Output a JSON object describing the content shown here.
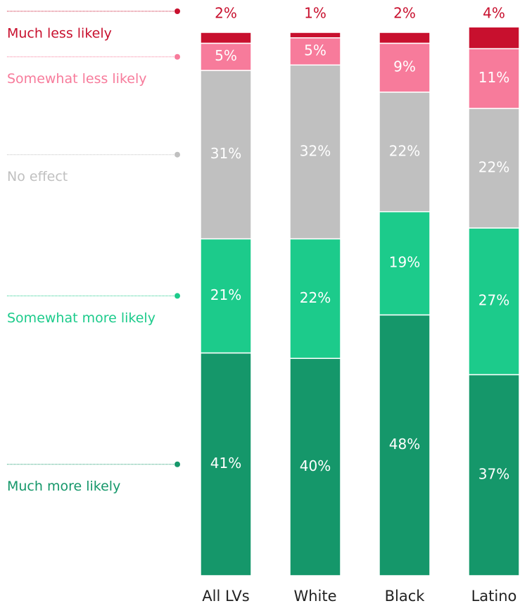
{
  "chart_data": {
    "type": "stacked_bar",
    "categories": [
      "All LVs",
      "White",
      "Black",
      "Latino"
    ],
    "series": [
      {
        "name": "Much more likely",
        "color": "#15976a",
        "values": [
          41,
          40,
          48,
          37
        ],
        "value_labels": [
          "41%",
          "40%",
          "48%",
          "37%"
        ]
      },
      {
        "name": "Somewhat more likely",
        "color": "#1ccb8b",
        "values": [
          21,
          22,
          19,
          27
        ],
        "value_labels": [
          "21%",
          "22%",
          "19%",
          "27%"
        ]
      },
      {
        "name": "No effect",
        "color": "#c0c0c0",
        "values": [
          31,
          32,
          22,
          22
        ],
        "value_labels": [
          "31%",
          "32%",
          "22%",
          "22%"
        ]
      },
      {
        "name": "Somewhat less likely",
        "color": "#f77b9b",
        "values": [
          5,
          5,
          9,
          11
        ],
        "value_labels": [
          "5%",
          "5%",
          "9%",
          "11%"
        ]
      },
      {
        "name": "Much less likely",
        "color": "#c8102e",
        "values": [
          2,
          1,
          2,
          4
        ],
        "value_labels": [
          "2%",
          "1%",
          "2%",
          "4%"
        ]
      }
    ]
  }
}
